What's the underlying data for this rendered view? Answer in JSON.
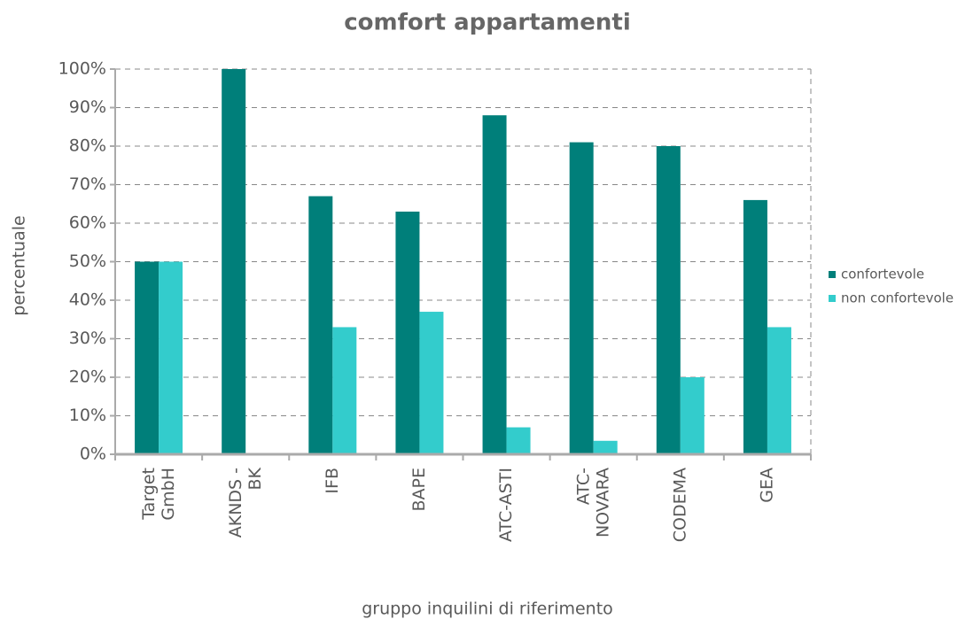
{
  "chart_data": {
    "type": "bar",
    "title": "comfort appartamenti",
    "x_label": "gruppo inquilini di riferimento",
    "y_label": "percentuale",
    "categories": [
      "Target\nGmbH",
      "AKNDS -\nBK",
      "IFB",
      "BAPE",
      "ATC-ASTI",
      "ATC-\nNOVARA",
      "CODEMA",
      "GEA"
    ],
    "series": [
      {
        "name": "confortevole",
        "color": "#007f7a",
        "values": [
          50,
          100,
          67,
          63,
          88,
          81,
          80,
          66
        ]
      },
      {
        "name": "non confortevole",
        "color": "#33cccc",
        "values": [
          50,
          0,
          33,
          37,
          7,
          3.5,
          20,
          33
        ]
      }
    ],
    "ylim": [
      0,
      100
    ],
    "yticks": [
      {
        "value": 0,
        "label": "0%"
      },
      {
        "value": 10,
        "label": "10%"
      },
      {
        "value": 20,
        "label": "20%"
      },
      {
        "value": 30,
        "label": "30%"
      },
      {
        "value": 40,
        "label": "40%"
      },
      {
        "value": 50,
        "label": "50%"
      },
      {
        "value": 60,
        "label": "60%"
      },
      {
        "value": 70,
        "label": "70%"
      },
      {
        "value": 80,
        "label": "80%"
      },
      {
        "value": 90,
        "label": "90%"
      },
      {
        "value": 100,
        "label": "100%"
      }
    ],
    "grid": true,
    "legend": "right"
  }
}
